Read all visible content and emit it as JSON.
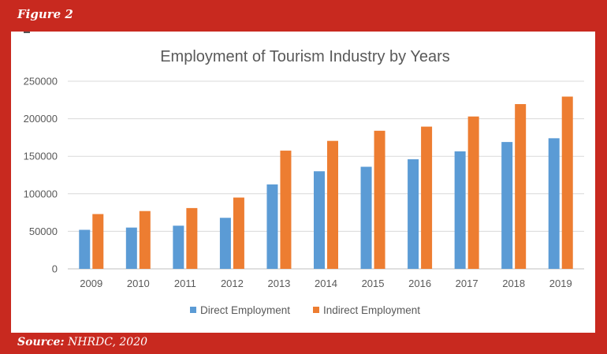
{
  "figure_label": "Figure 2",
  "source": {
    "prefix": "Source:",
    "text": " NHRDC, 2020"
  },
  "colors": {
    "frame": "#c8291f",
    "direct": "#5b9bd5",
    "indirect": "#ed7d31",
    "grid": "#d9d9d9"
  },
  "chart_data": {
    "type": "bar",
    "title": "Employment of Tourism Industry by Years",
    "xlabel": "",
    "ylabel": "",
    "categories": [
      "2009",
      "2010",
      "2011",
      "2012",
      "2013",
      "2014",
      "2015",
      "2016",
      "2017",
      "2018",
      "2019"
    ],
    "series": [
      {
        "name": "Direct Employment",
        "values": [
          52000,
          55000,
          57500,
          68000,
          112500,
          130000,
          136000,
          146000,
          156500,
          169000,
          174000
        ]
      },
      {
        "name": "Indirect Employment",
        "values": [
          73000,
          77000,
          81000,
          95000,
          157500,
          170500,
          184000,
          189500,
          203000,
          219500,
          229500
        ]
      }
    ],
    "ylim": [
      0,
      250000
    ],
    "yticks": [
      "0",
      "50000",
      "100000",
      "150000",
      "200000",
      "250000"
    ],
    "grid": true,
    "legend_position": "bottom"
  }
}
